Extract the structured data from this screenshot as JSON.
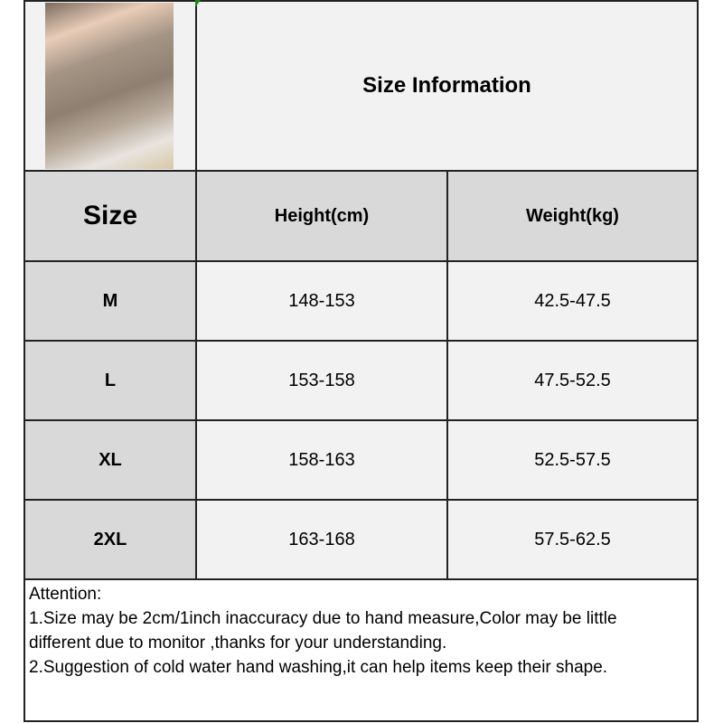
{
  "title": "Size Information",
  "headers": [
    "Size",
    "Height(cm)",
    "Weight(kg)"
  ],
  "rows": [
    {
      "size": "M",
      "height": "148-153",
      "weight": "42.5-47.5"
    },
    {
      "size": "L",
      "height": "153-158",
      "weight": "47.5-52.5"
    },
    {
      "size": "XL",
      "height": "158-163",
      "weight": "52.5-57.5"
    },
    {
      "size": "2XL",
      "height": "163-168",
      "weight": "57.5-62.5"
    }
  ],
  "notes": {
    "heading": "Attention:",
    "line1": "1.Size may be 2cm/1inch inaccuracy due to hand measure,Color may be little",
    "line1b": "different due to monitor ,thanks for your understanding.",
    "line2": "2.Suggestion of cold water hand washing,it can help items keep their shape."
  },
  "colors": {
    "header_bg": "#d9d9d9",
    "cell_bg": "#f2f2f2",
    "border": "#222222"
  }
}
